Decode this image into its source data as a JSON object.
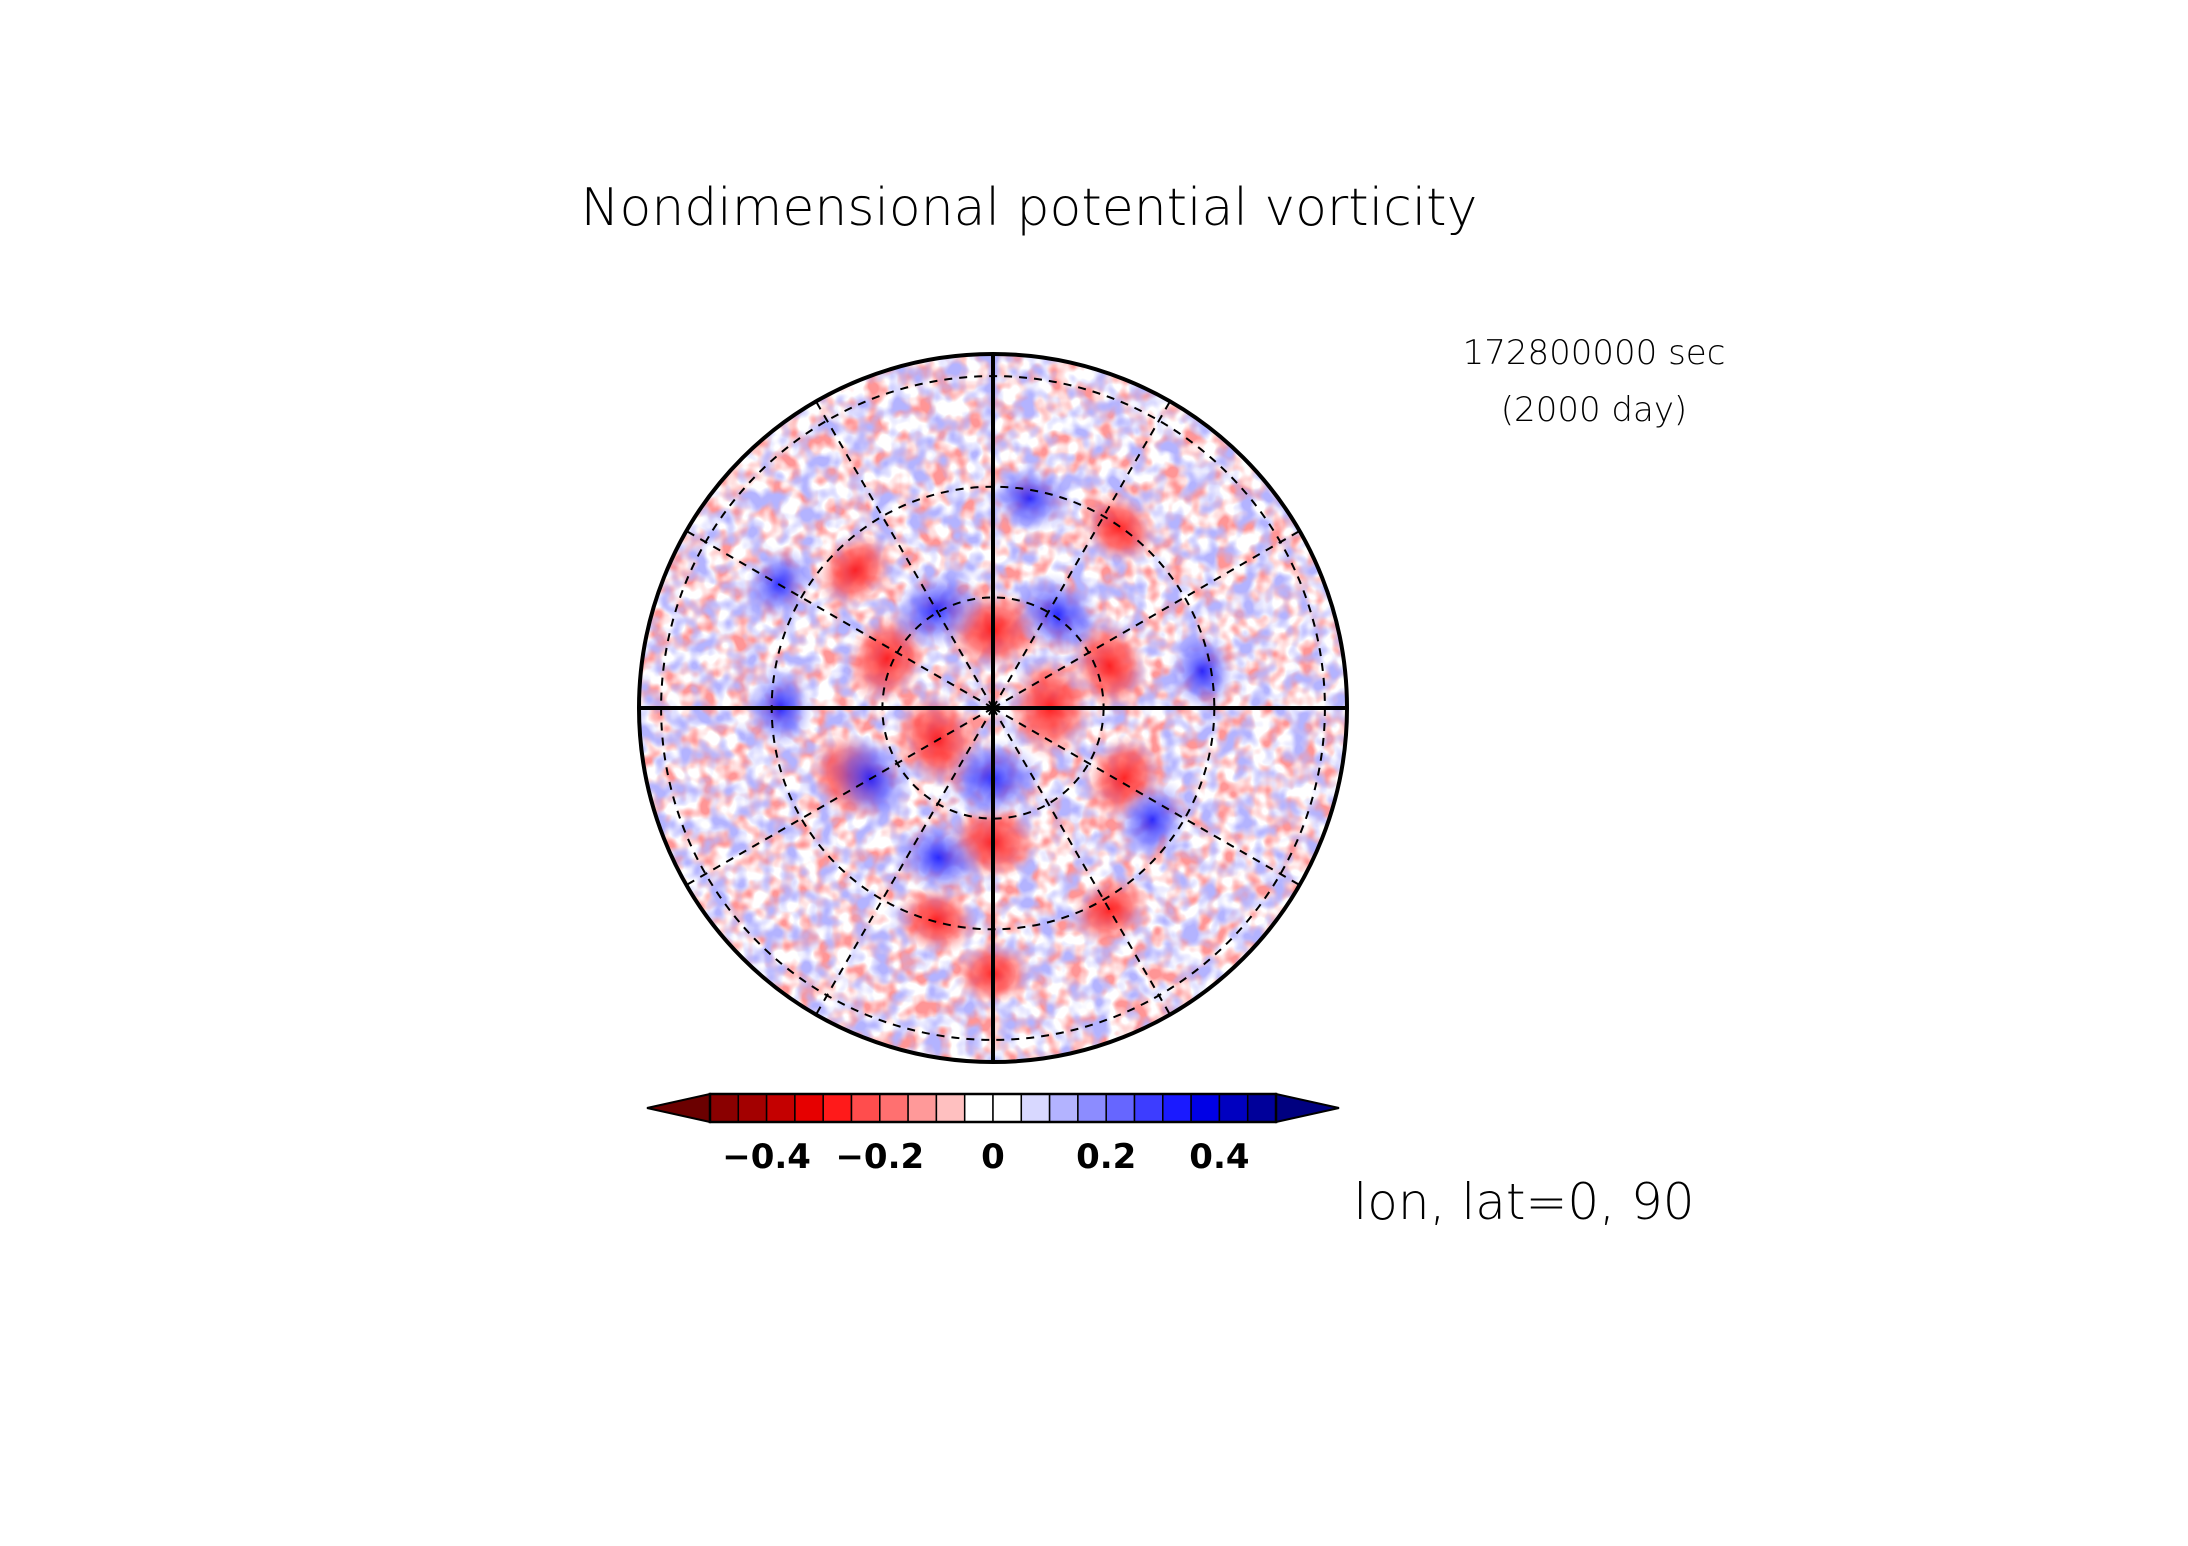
{
  "figure": {
    "title": "Nondimensional potential vorticity",
    "time_seconds": "172800000 sec",
    "time_days": "(2000 day)",
    "projection_label": "lon, lat=0, 90"
  },
  "chart_data": {
    "type": "heatmap",
    "projection": "polar-stereographic",
    "center": {
      "lon": 0,
      "lat": 90
    },
    "title": "Nondimensional potential vorticity",
    "annotations": [
      "172800000 sec",
      "(2000 day)",
      "lon, lat=0, 90"
    ],
    "grid": true,
    "grid_meridians_deg": [
      0,
      30,
      60,
      90,
      120,
      150,
      180,
      210,
      240,
      270,
      300,
      330
    ],
    "grid_latitude_circles": 3,
    "colorbar": {
      "orientation": "horizontal",
      "placement": "bottom",
      "min": -0.5,
      "max": 0.5,
      "step": 0.05,
      "extend": "both",
      "tick_values": [
        -0.4,
        -0.2,
        0,
        0.2,
        0.4
      ],
      "tick_labels": [
        "−0.4",
        "−0.2",
        "0",
        "0.2",
        "0.4"
      ],
      "colors": [
        "#6b0000",
        "#8a0000",
        "#a30000",
        "#c40000",
        "#e60000",
        "#ff1a1a",
        "#ff4d4d",
        "#ff7070",
        "#ff9999",
        "#ffc0c0",
        "#ffffff",
        "#ffffff",
        "#d8d8ff",
        "#b3b3ff",
        "#8c8cff",
        "#6666ff",
        "#3d3dff",
        "#1a1aff",
        "#0000e6",
        "#0000c0",
        "#00009a",
        "#000080"
      ]
    },
    "anomaly_lobes": [
      {
        "sign": "negative",
        "azimuth_deg": 180,
        "radius_frac": 0.38
      },
      {
        "sign": "negative",
        "azimuth_deg": 0,
        "radius_frac": 0.22
      },
      {
        "sign": "negative",
        "azimuth_deg": 90,
        "radius_frac": 0.16
      },
      {
        "sign": "negative",
        "azimuth_deg": 240,
        "radius_frac": 0.18
      },
      {
        "sign": "negative",
        "azimuth_deg": 180,
        "radius_frac": 0.75
      },
      {
        "sign": "negative",
        "azimuth_deg": 70,
        "radius_frac": 0.35
      },
      {
        "sign": "negative",
        "azimuth_deg": 35,
        "radius_frac": 0.62
      },
      {
        "sign": "negative",
        "azimuth_deg": 118,
        "radius_frac": 0.42
      },
      {
        "sign": "negative",
        "azimuth_deg": 245,
        "radius_frac": 0.45
      },
      {
        "sign": "negative",
        "azimuth_deg": 315,
        "radius_frac": 0.55
      },
      {
        "sign": "negative",
        "azimuth_deg": 195,
        "radius_frac": 0.62
      },
      {
        "sign": "negative",
        "azimuth_deg": 295,
        "radius_frac": 0.33
      },
      {
        "sign": "negative",
        "azimuth_deg": 150,
        "radius_frac": 0.66
      },
      {
        "sign": "positive",
        "azimuth_deg": 180,
        "radius_frac": 0.2
      },
      {
        "sign": "positive",
        "azimuth_deg": 330,
        "radius_frac": 0.32
      },
      {
        "sign": "positive",
        "azimuth_deg": 240,
        "radius_frac": 0.4
      },
      {
        "sign": "positive",
        "azimuth_deg": 35,
        "radius_frac": 0.32
      },
      {
        "sign": "positive",
        "azimuth_deg": 125,
        "radius_frac": 0.55
      },
      {
        "sign": "positive",
        "azimuth_deg": 200,
        "radius_frac": 0.45
      },
      {
        "sign": "positive",
        "azimuth_deg": 270,
        "radius_frac": 0.6
      },
      {
        "sign": "positive",
        "azimuth_deg": 10,
        "radius_frac": 0.6
      },
      {
        "sign": "positive",
        "azimuth_deg": 80,
        "radius_frac": 0.6
      },
      {
        "sign": "positive",
        "azimuth_deg": 300,
        "radius_frac": 0.7
      }
    ]
  }
}
